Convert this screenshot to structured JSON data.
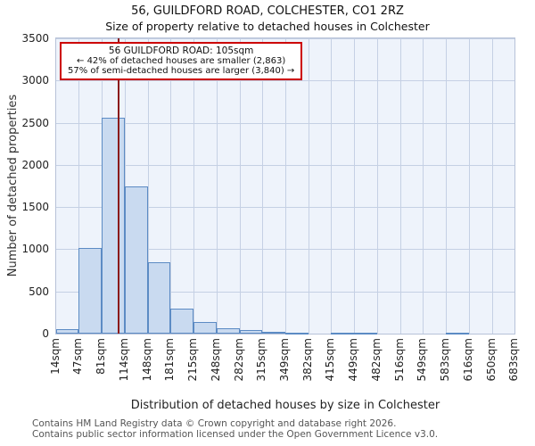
{
  "title": "56, GUILDFORD ROAD, COLCHESTER, CO1 2RZ",
  "subtitle": "Size of property relative to detached houses in Colchester",
  "annotation": {
    "line1": "56 GUILDFORD ROAD: 105sqm",
    "line2": "← 42% of detached houses are smaller (2,863)",
    "line3": "57% of semi-detached houses are larger (3,840) →"
  },
  "footer": {
    "line1": "Contains HM Land Registry data © Crown copyright and database right 2026.",
    "line2": "Contains public sector information licensed under the Open Government Licence v3.0."
  },
  "chart_data": {
    "type": "bar",
    "title": "56, GUILDFORD ROAD, COLCHESTER, CO1 2RZ — Size of property relative to detached houses in Colchester",
    "xlabel": "Distribution of detached houses by size in Colchester",
    "ylabel": "Number of detached properties",
    "x_tick_labels": [
      "14sqm",
      "47sqm",
      "81sqm",
      "114sqm",
      "148sqm",
      "181sqm",
      "215sqm",
      "248sqm",
      "282sqm",
      "315sqm",
      "349sqm",
      "382sqm",
      "415sqm",
      "449sqm",
      "482sqm",
      "516sqm",
      "549sqm",
      "583sqm",
      "616sqm",
      "650sqm",
      "683sqm"
    ],
    "bin_edges_sqm": [
      14,
      47,
      81,
      114,
      148,
      181,
      215,
      248,
      282,
      315,
      349,
      382,
      415,
      449,
      482,
      516,
      549,
      583,
      616,
      650,
      683
    ],
    "values": [
      50,
      1020,
      2560,
      1740,
      850,
      300,
      140,
      60,
      45,
      25,
      12,
      0,
      10,
      5,
      0,
      0,
      0,
      3,
      0,
      0
    ],
    "ylim": [
      0,
      3500
    ],
    "y_ticks": [
      0,
      500,
      1000,
      1500,
      2000,
      2500,
      3000,
      3500
    ],
    "marker_value_sqm": 105,
    "grid": true,
    "legend": "none",
    "colors": {
      "bar_fill": "#c9daf0",
      "bar_border": "#5c8bc4",
      "marker": "#8b1a1a",
      "grid": "#c5d0e4",
      "plot_bg": "#eef3fb",
      "annotation_border": "#cc0000"
    }
  }
}
